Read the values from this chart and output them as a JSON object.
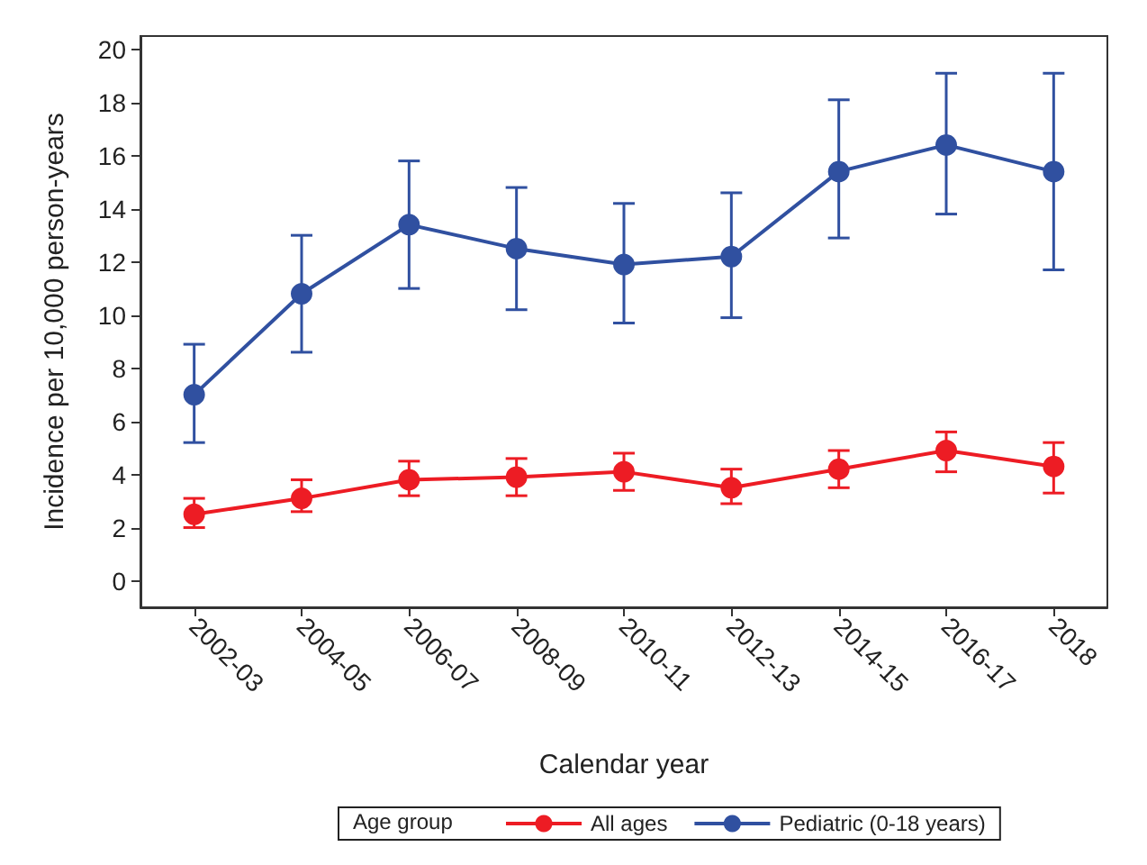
{
  "chart_data": {
    "type": "line",
    "xlabel": "Calendar year",
    "ylabel": "Incidence per 10,000 person-years",
    "legend_title": "Age group",
    "legend": "bottom",
    "marker": "circle",
    "grid": false,
    "categories": [
      "2002-03",
      "2004-05",
      "2006-07",
      "2008-09",
      "2010-11",
      "2012-13",
      "2014-15",
      "2016-17",
      "2018"
    ],
    "ylim": [
      -1,
      20.5
    ],
    "yticks": [
      0,
      2,
      4,
      6,
      8,
      10,
      12,
      14,
      16,
      18,
      20
    ],
    "series": [
      {
        "name": "All ages",
        "color": "#ed1c24",
        "values": [
          2.5,
          3.1,
          3.8,
          3.9,
          4.1,
          3.5,
          4.2,
          4.9,
          4.3
        ],
        "errors": [
          [
            2.0,
            3.1
          ],
          [
            2.6,
            3.8
          ],
          [
            3.2,
            4.5
          ],
          [
            3.2,
            4.6
          ],
          [
            3.4,
            4.8
          ],
          [
            2.9,
            4.2
          ],
          [
            3.5,
            4.9
          ],
          [
            4.1,
            5.6
          ],
          [
            3.3,
            5.2
          ]
        ]
      },
      {
        "name": "Pediatric (0-18 years)",
        "color": "#3050a0",
        "values": [
          7.0,
          10.8,
          13.4,
          12.5,
          11.9,
          12.2,
          15.4,
          16.4,
          15.4
        ],
        "errors": [
          [
            5.2,
            8.9
          ],
          [
            8.6,
            13.0
          ],
          [
            11.0,
            15.8
          ],
          [
            10.2,
            14.8
          ],
          [
            9.7,
            14.2
          ],
          [
            9.9,
            14.6
          ],
          [
            12.9,
            18.1
          ],
          [
            13.8,
            19.1
          ],
          [
            11.7,
            19.1
          ]
        ]
      }
    ]
  }
}
